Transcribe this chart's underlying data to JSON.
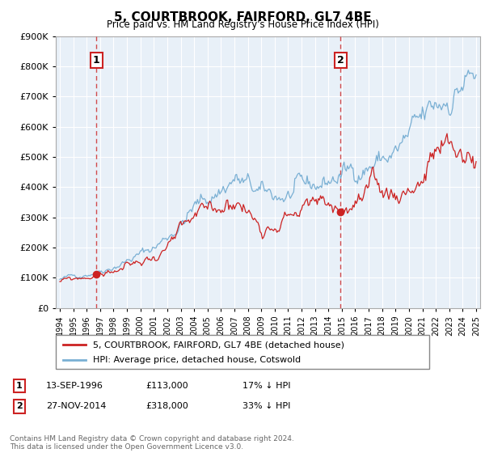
{
  "title": "5, COURTBROOK, FAIRFORD, GL7 4BE",
  "subtitle": "Price paid vs. HM Land Registry's House Price Index (HPI)",
  "sale1_date": "13-SEP-1996",
  "sale1_price": 113000,
  "sale1_pct": "17% ↓ HPI",
  "sale1_label": "1",
  "sale2_date": "27-NOV-2014",
  "sale2_price": 318000,
  "sale2_pct": "33% ↓ HPI",
  "sale2_label": "2",
  "legend_line1": "5, COURTBROOK, FAIRFORD, GL7 4BE (detached house)",
  "legend_line2": "HPI: Average price, detached house, Cotswold",
  "footer": "Contains HM Land Registry data © Crown copyright and database right 2024.\nThis data is licensed under the Open Government Licence v3.0.",
  "sale_line_color": "#cc2222",
  "hpi_line_color": "#7ab0d4",
  "bg_color": "#e8f0f8",
  "grid_color": "#ffffff",
  "ylim": [
    0,
    900000
  ],
  "yticks": [
    0,
    100000,
    200000,
    300000,
    400000,
    500000,
    600000,
    700000,
    800000,
    900000
  ],
  "sale1_x": 1996.71,
  "sale2_x": 2014.9
}
